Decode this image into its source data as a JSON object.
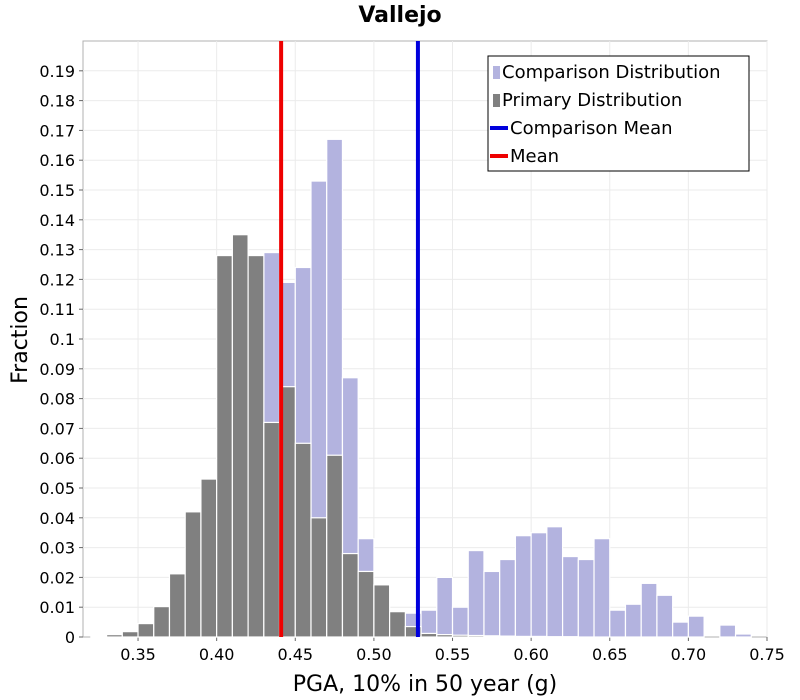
{
  "chart_data": {
    "type": "bar",
    "title": "Vallejo",
    "xlabel": "PGA, 10% in 50 year (g)",
    "ylabel": "Fraction",
    "xlim": [
      0.315,
      0.75
    ],
    "ylim": [
      0,
      0.2
    ],
    "x_ticks": [
      "0.35",
      "0.40",
      "0.45",
      "0.50",
      "0.55",
      "0.60",
      "0.65",
      "0.70",
      "0.75"
    ],
    "y_ticks": [
      "0",
      "0.01",
      "0.02",
      "0.03",
      "0.04",
      "0.05",
      "0.06",
      "0.07",
      "0.08",
      "0.09",
      "0.1",
      "0.11",
      "0.12",
      "0.13",
      "0.14",
      "0.15",
      "0.16",
      "0.17",
      "0.18",
      "0.19"
    ],
    "grid": true,
    "legend_position": "top-right",
    "bin_width": 0.01,
    "series": [
      {
        "name": "Comparison Distribution",
        "kind": "histogram",
        "color": "#b3b3df",
        "bin_centers": [
          0.435,
          0.445,
          0.455,
          0.465,
          0.475,
          0.485,
          0.495,
          0.505,
          0.515,
          0.525,
          0.535,
          0.545,
          0.555,
          0.565,
          0.575,
          0.585,
          0.595,
          0.605,
          0.615,
          0.625,
          0.635,
          0.645,
          0.655,
          0.665,
          0.675,
          0.685,
          0.695,
          0.705,
          0.715,
          0.725,
          0.735,
          0.745
        ],
        "values": [
          0.129,
          0.119,
          0.124,
          0.153,
          0.167,
          0.087,
          0.033,
          0.014,
          0.007,
          0.008,
          0.009,
          0.02,
          0.01,
          0.029,
          0.022,
          0.026,
          0.034,
          0.035,
          0.037,
          0.027,
          0.026,
          0.033,
          0.009,
          0.011,
          0.018,
          0.014,
          0.005,
          0.007,
          0.0,
          0.004,
          0.001,
          0.0
        ]
      },
      {
        "name": "Primary Distribution",
        "kind": "histogram",
        "color": "#808080",
        "bin_centers": [
          0.325,
          0.335,
          0.345,
          0.355,
          0.365,
          0.375,
          0.385,
          0.395,
          0.405,
          0.415,
          0.425,
          0.435,
          0.445,
          0.455,
          0.465,
          0.475,
          0.485,
          0.495,
          0.505,
          0.515,
          0.525,
          0.535,
          0.545,
          0.555,
          0.565,
          0.575,
          0.585,
          0.595,
          0.605,
          0.615,
          0.625
        ],
        "values": [
          0.0003,
          0.0008,
          0.0018,
          0.0045,
          0.0102,
          0.0212,
          0.042,
          0.053,
          0.128,
          0.135,
          0.128,
          0.072,
          0.084,
          0.065,
          0.04,
          0.061,
          0.028,
          0.022,
          0.0175,
          0.0085,
          0.0035,
          0.0012,
          0.0008,
          0.0006,
          0.0005,
          0.0004,
          0.0003,
          0.0002,
          0.0002,
          0.0001,
          0.0001
        ]
      },
      {
        "name": "Comparison Mean",
        "kind": "vline",
        "color": "#0000dd",
        "x": 0.528
      },
      {
        "name": "Mean",
        "kind": "vline",
        "color": "#ee0000",
        "x": 0.441
      }
    ]
  }
}
